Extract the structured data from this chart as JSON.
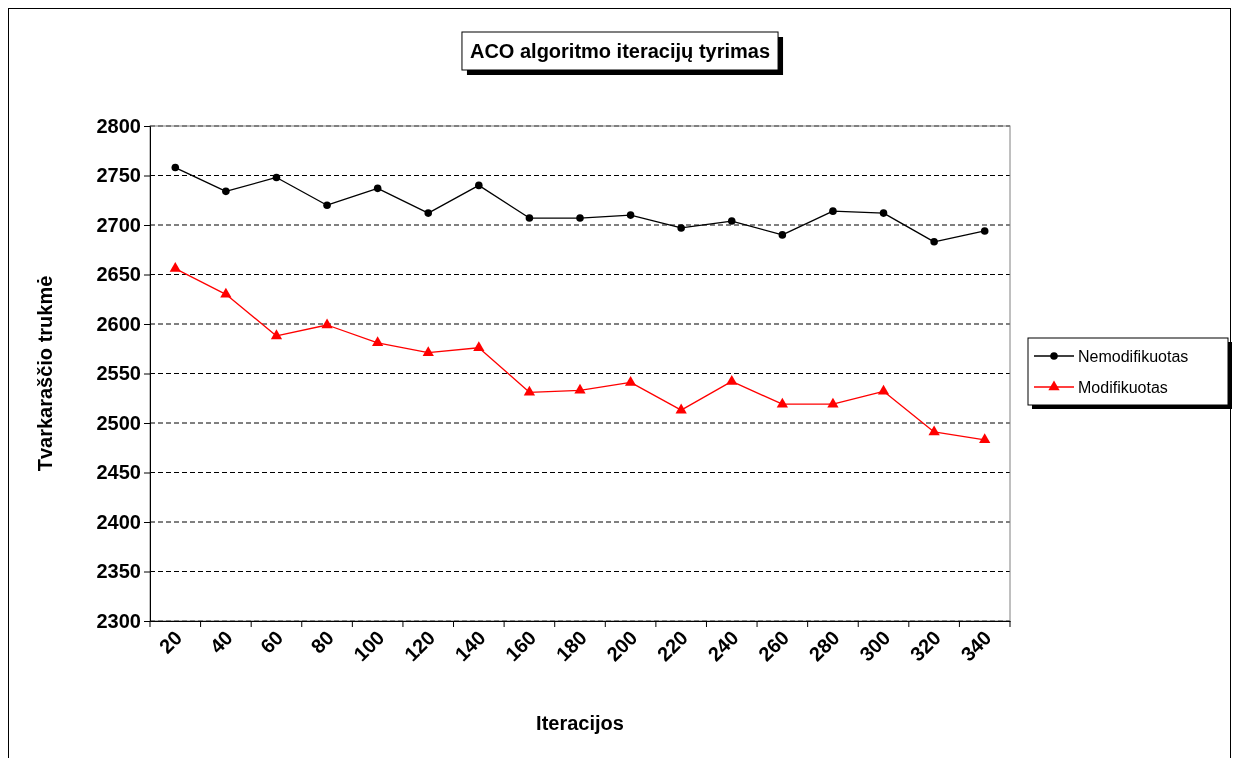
{
  "chart_data": {
    "type": "line",
    "title": "ACO algoritmo iteracijų tyrimas",
    "xlabel": "Iteracijos",
    "ylabel": "Tvarkaraščio trukmė",
    "categories": [
      "20",
      "40",
      "60",
      "80",
      "100",
      "120",
      "140",
      "160",
      "180",
      "200",
      "220",
      "240",
      "260",
      "280",
      "300",
      "320",
      "340"
    ],
    "series": [
      {
        "name": "Nemodifikuotas",
        "color": "#000000",
        "marker": "circle",
        "values": [
          2758,
          2734,
          2748,
          2720,
          2737,
          2712,
          2740,
          2707,
          2707,
          2710,
          2697,
          2704,
          2690,
          2714,
          2712,
          2683,
          2694
        ]
      },
      {
        "name": "Modifikuotas",
        "color": "#ff0000",
        "marker": "triangle",
        "values": [
          2656,
          2630,
          2588,
          2599,
          2581,
          2571,
          2576,
          2531,
          2533,
          2541,
          2513,
          2542,
          2519,
          2519,
          2532,
          2491,
          2483
        ]
      }
    ],
    "ylim": [
      2300,
      2800
    ],
    "yticks": [
      2300,
      2350,
      2400,
      2450,
      2500,
      2550,
      2600,
      2650,
      2700,
      2750,
      2800
    ],
    "grid": "y",
    "legend": "right",
    "line_style": "solid"
  }
}
